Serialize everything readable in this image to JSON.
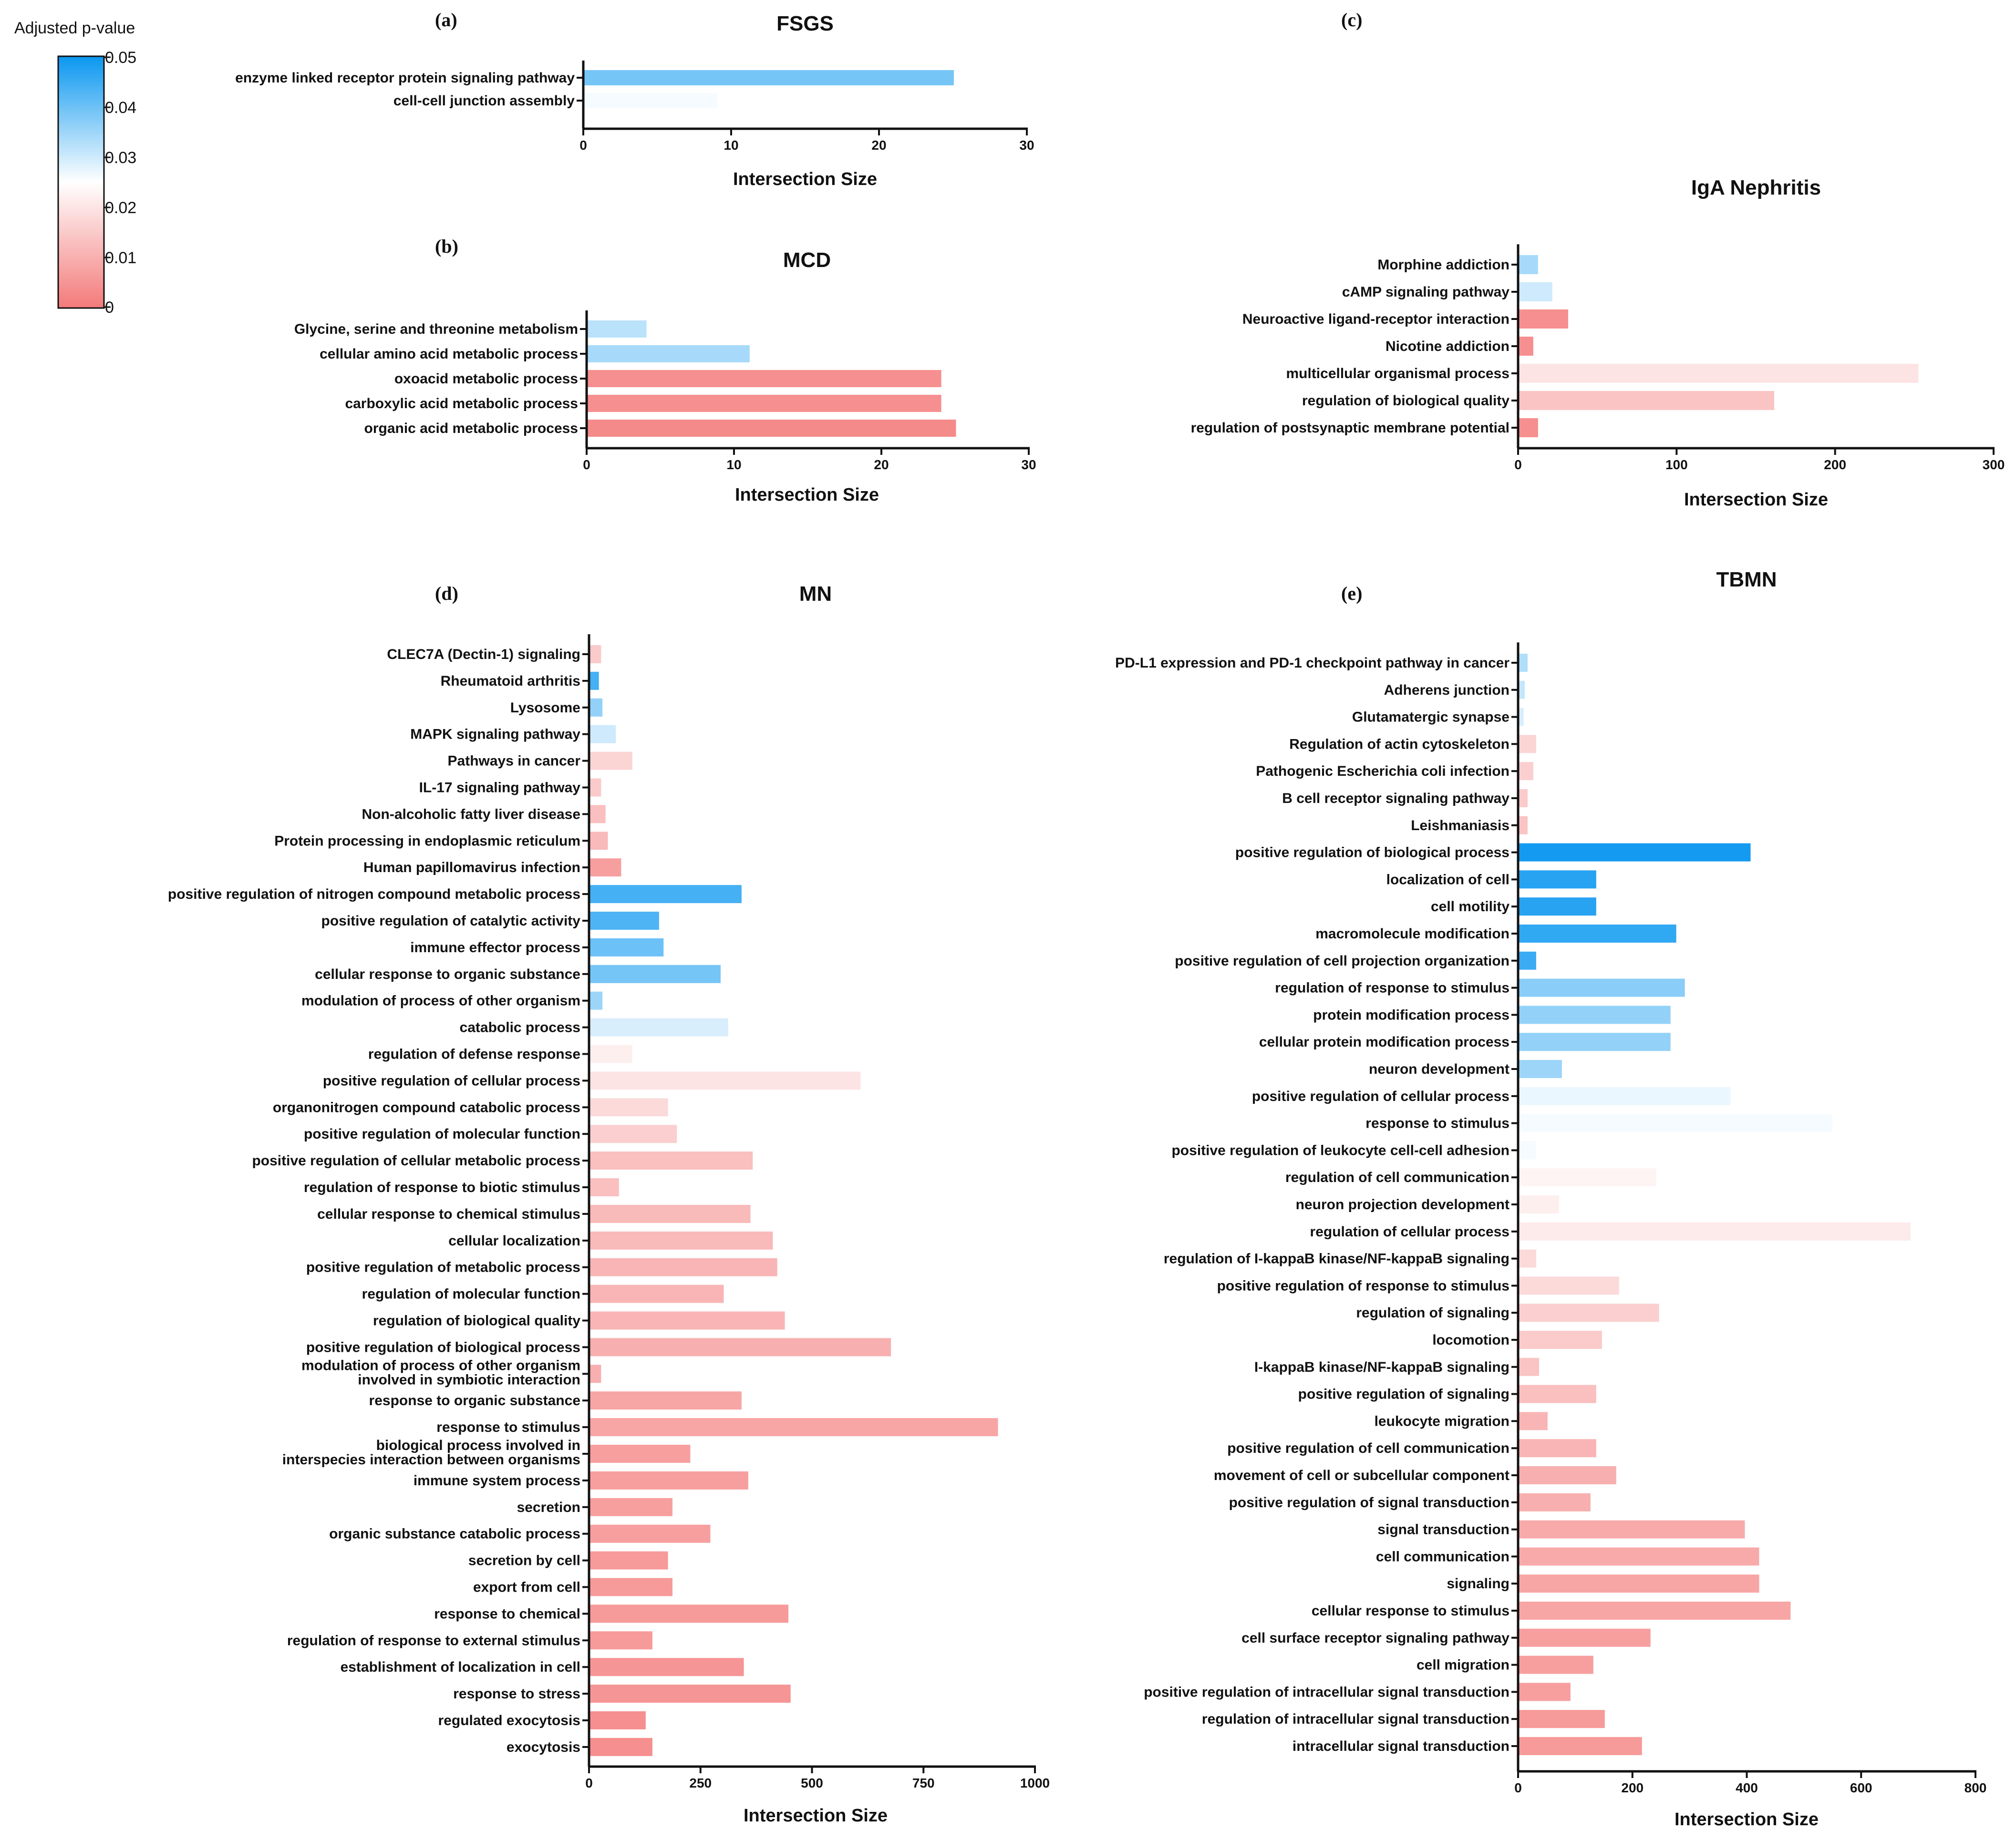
{
  "legend": {
    "title": "Adjusted p-value",
    "ticks": [
      "0.05",
      "0.04",
      "0.03",
      "0.02",
      "0.01",
      "0"
    ],
    "gradient": [
      "#0a97f0",
      "#ffffff",
      "#f47a7a"
    ]
  },
  "chart_data": [
    {
      "id": "fsgs",
      "panel": "(a)",
      "type": "bar",
      "orientation": "horizontal",
      "title": "FSGS",
      "xlabel": "Intersection Size",
      "xlim": [
        0,
        30
      ],
      "xticks": [
        0,
        10,
        20,
        30
      ],
      "categories": [
        "enzyme linked receptor protein signaling pathway",
        "cell-cell junction assembly"
      ],
      "values": [
        25,
        9
      ],
      "pvalues": [
        0.039,
        0.026
      ]
    },
    {
      "id": "mcd",
      "panel": "(b)",
      "type": "bar",
      "orientation": "horizontal",
      "title": "MCD",
      "xlabel": "Intersection Size",
      "xlim": [
        0,
        30
      ],
      "xticks": [
        0,
        10,
        20,
        30
      ],
      "categories": [
        "Glycine, serine and threonine metabolism",
        "cellular amino acid metabolic process",
        "oxoacid metabolic process",
        "carboxylic acid metabolic process",
        "organic acid metabolic process"
      ],
      "values": [
        4,
        11,
        24,
        24,
        25
      ],
      "pvalues": [
        0.032,
        0.034,
        0.004,
        0.004,
        0.003
      ]
    },
    {
      "id": "iga",
      "panel": "(c)",
      "type": "bar",
      "orientation": "horizontal",
      "title": "IgA Nephritis",
      "xlabel": "Intersection Size",
      "xlim": [
        0,
        300
      ],
      "xticks": [
        0,
        100,
        200,
        300
      ],
      "categories": [
        "Morphine addiction",
        "cAMP signaling pathway",
        "Neuroactive ligand-receptor interaction",
        "Nicotine addiction",
        "multicellular organismal process",
        "regulation of biological quality",
        "regulation of postsynaptic membrane potential"
      ],
      "values": [
        12,
        21,
        31,
        9,
        252,
        161,
        12
      ],
      "pvalues": [
        0.034,
        0.03,
        0.004,
        0.004,
        0.02,
        0.014,
        0.004
      ]
    },
    {
      "id": "mn",
      "panel": "(d)",
      "type": "bar",
      "orientation": "horizontal",
      "title": "MN",
      "xlabel": "Intersection Size",
      "xlim": [
        0,
        1000
      ],
      "xticks": [
        0,
        250,
        500,
        750,
        1000
      ],
      "categories": [
        "CLEC7A (Dectin-1) signaling",
        "Rheumatoid arthritis",
        "Lysosome",
        "MAPK signaling pathway",
        "Pathways in cancer",
        "IL-17 signaling pathway",
        "Non-alcoholic fatty liver disease",
        "Protein processing in endoplasmic reticulum",
        "Human papillomavirus infection",
        "positive regulation of nitrogen compound metabolic process",
        "positive regulation of catalytic activity",
        "immune effector process",
        "cellular response to organic substance",
        "modulation of process of other organism",
        "catabolic process",
        "regulation of defense response",
        "positive regulation of cellular process",
        "organonitrogen compound catabolic process",
        "positive regulation of molecular function",
        "positive regulation of cellular metabolic process",
        "regulation of response to biotic stimulus",
        "cellular response to chemical stimulus",
        "cellular localization",
        "positive regulation of metabolic process",
        "regulation of molecular function",
        "regulation of biological quality",
        "positive regulation of biological process",
        "modulation of process of other organism involved in symbiotic interaction",
        "response to organic substance",
        "response to stimulus",
        "biological process involved in interspecies interaction between organisms",
        "immune system process",
        "secretion",
        "organic substance catabolic process",
        "secretion by cell",
        "export from cell",
        "response to chemical",
        "regulation of response to external stimulus",
        "establishment of localization in cell",
        "response to stress",
        "regulated exocytosis",
        "exocytosis"
      ],
      "values": [
        25,
        20,
        28,
        58,
        95,
        25,
        35,
        40,
        70,
        340,
        155,
        165,
        293,
        28,
        310,
        95,
        607,
        175,
        195,
        365,
        65,
        360,
        410,
        420,
        300,
        437,
        675,
        25,
        340,
        915,
        225,
        355,
        185,
        270,
        175,
        185,
        445,
        140,
        345,
        450,
        125,
        140
      ],
      "pvalues": [
        0.015,
        0.044,
        0.036,
        0.03,
        0.017,
        0.015,
        0.013,
        0.012,
        0.007,
        0.044,
        0.043,
        0.04,
        0.039,
        0.035,
        0.029,
        0.022,
        0.02,
        0.018,
        0.016,
        0.013,
        0.013,
        0.012,
        0.012,
        0.011,
        0.011,
        0.011,
        0.01,
        0.01,
        0.008,
        0.008,
        0.007,
        0.007,
        0.007,
        0.007,
        0.006,
        0.006,
        0.006,
        0.006,
        0.005,
        0.005,
        0.004,
        0.004
      ]
    },
    {
      "id": "tbmn",
      "panel": "(e)",
      "type": "bar",
      "orientation": "horizontal",
      "title": "TBMN",
      "xlabel": "Intersection Size",
      "xlim": [
        0,
        800
      ],
      "xticks": [
        0,
        200,
        400,
        600,
        800
      ],
      "categories": [
        "PD-L1 expression and PD-1 checkpoint pathway in cancer",
        "Adherens junction",
        "Glutamatergic synapse",
        "Regulation of actin cytoskeleton",
        "Pathogenic Escherichia coli infection",
        "B cell receptor signaling pathway",
        "Leishmaniasis",
        "positive regulation of biological process",
        "localization of cell",
        "cell motility",
        "macromolecule modification",
        "positive regulation of cell projection organization",
        "regulation of response to stimulus",
        "protein modification process",
        "cellular protein modification process",
        "neuron development",
        "positive regulation of cellular process",
        "response to stimulus",
        "positive regulation of leukocyte cell-cell adhesion",
        "regulation of cell communication",
        "neuron projection development",
        "regulation of cellular process",
        "regulation of I-kappaB kinase/NF-kappaB signaling",
        "positive regulation of response to stimulus",
        "regulation of signaling",
        "locomotion",
        "I-kappaB kinase/NF-kappaB signaling",
        "positive regulation of signaling",
        "leukocyte migration",
        "positive regulation of cell communication",
        "movement of cell or subcellular component",
        "positive regulation of signal transduction",
        "signal transduction",
        "cell communication",
        "signaling",
        "cellular response to stimulus",
        "cell surface receptor signaling pathway",
        "cell migration",
        "positive regulation of intracellular signal transduction",
        "regulation of intracellular signal transduction",
        "intracellular signal transduction"
      ],
      "values": [
        15,
        10,
        8,
        30,
        25,
        15,
        15,
        405,
        135,
        135,
        275,
        30,
        290,
        265,
        265,
        75,
        370,
        548,
        30,
        240,
        70,
        685,
        30,
        175,
        245,
        145,
        35,
        135,
        50,
        135,
        170,
        125,
        395,
        420,
        420,
        475,
        230,
        130,
        90,
        150,
        215
      ],
      "pvalues": [
        0.033,
        0.031,
        0.029,
        0.017,
        0.016,
        0.015,
        0.014,
        0.049,
        0.047,
        0.047,
        0.046,
        0.045,
        0.037,
        0.036,
        0.036,
        0.035,
        0.027,
        0.026,
        0.026,
        0.023,
        0.022,
        0.021,
        0.018,
        0.018,
        0.016,
        0.015,
        0.014,
        0.013,
        0.011,
        0.011,
        0.01,
        0.01,
        0.009,
        0.009,
        0.008,
        0.008,
        0.007,
        0.007,
        0.007,
        0.006,
        0.006
      ]
    }
  ]
}
